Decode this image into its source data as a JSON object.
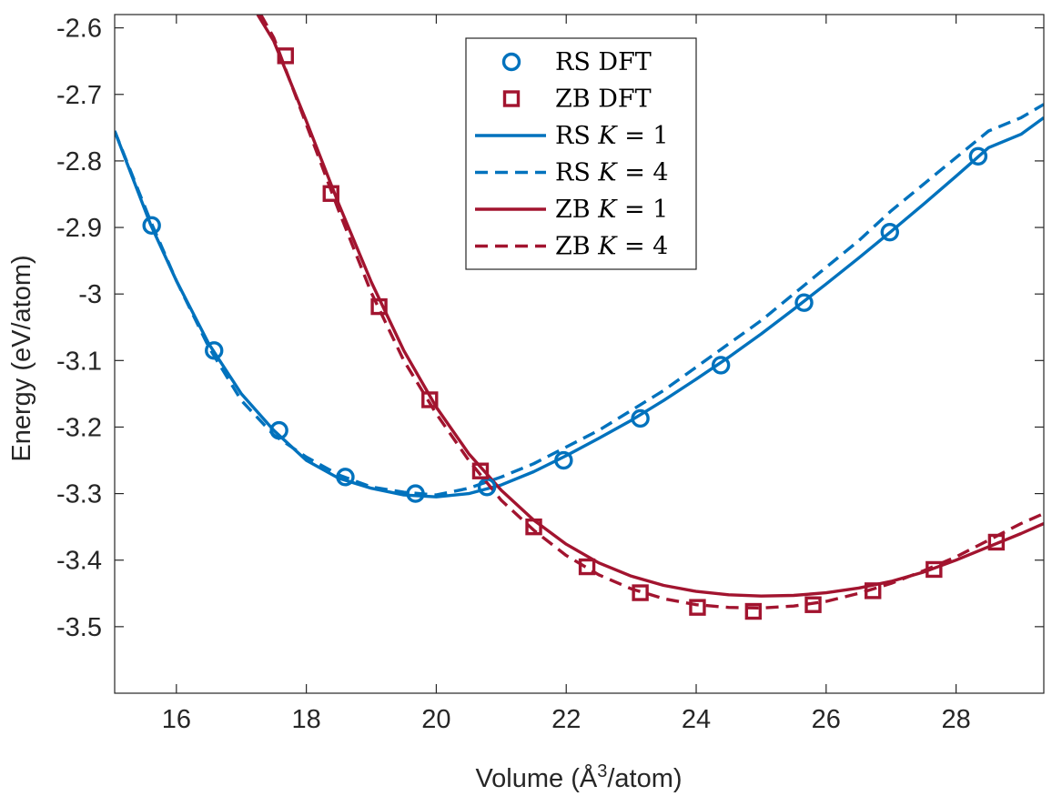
{
  "chart_data": {
    "type": "line",
    "title": "",
    "xlabel": "Volume (Å",
    "xlabel_sup": "3",
    "xlabel_suffix": "/atom)",
    "ylabel": "Energy (eV/atom)",
    "xlim": [
      15.05,
      29.35
    ],
    "ylim": [
      -3.6,
      -2.58
    ],
    "xticks": [
      16,
      18,
      20,
      22,
      24,
      26,
      28
    ],
    "xtick_labels": [
      "16",
      "18",
      "20",
      "22",
      "24",
      "26",
      "28"
    ],
    "yticks": [
      -3.5,
      -3.4,
      -3.3,
      -3.2,
      -3.1,
      -3.0,
      -2.9,
      -2.8,
      -2.7,
      -2.6
    ],
    "ytick_labels": [
      "-3.5",
      "-3.4",
      "-3.3",
      "-3.2",
      "-3.1",
      "-3",
      "-2.9",
      "-2.8",
      "-2.7",
      "-2.6"
    ],
    "grid": false,
    "legend_position": "top-center",
    "colors": {
      "rs": "#0072BD",
      "zb": "#A2142F"
    },
    "series": [
      {
        "name": "RS DFT",
        "label_prefix": "RS",
        "label_suffix": "DFT",
        "kind": "markers",
        "marker": "circle",
        "color": "#0072BD",
        "x": [
          15.62,
          16.58,
          17.58,
          18.6,
          19.68,
          20.78,
          21.96,
          23.14,
          24.38,
          25.66,
          26.98,
          28.34
        ],
        "y": [
          -2.897,
          -3.085,
          -3.205,
          -3.275,
          -3.3,
          -3.29,
          -3.25,
          -3.187,
          -3.107,
          -3.013,
          -2.907,
          -2.793
        ]
      },
      {
        "name": "ZB DFT",
        "label_prefix": "ZB",
        "label_suffix": "DFT",
        "kind": "markers",
        "marker": "square",
        "color": "#A2142F",
        "x": [
          17.68,
          18.38,
          19.12,
          19.9,
          20.68,
          21.5,
          22.32,
          23.14,
          24.02,
          24.88,
          25.8,
          26.72,
          27.66,
          28.62
        ],
        "y": [
          -2.642,
          -2.849,
          -3.019,
          -3.159,
          -3.266,
          -3.35,
          -3.41,
          -3.449,
          -3.471,
          -3.477,
          -3.467,
          -3.446,
          -3.414,
          -3.373
        ]
      },
      {
        "name": "RS K = 1",
        "label_prefix": "RS",
        "label_k": "K",
        "label_eq": "= 1",
        "kind": "line",
        "dash": "solid",
        "color": "#0072BD",
        "x": [
          15.05,
          15.6,
          16.0,
          16.5,
          17.0,
          17.5,
          18.0,
          18.5,
          19.0,
          19.5,
          20.0,
          20.5,
          21.0,
          21.5,
          22.0,
          22.5,
          23.0,
          23.5,
          24.0,
          24.5,
          25.0,
          25.5,
          26.0,
          26.5,
          27.0,
          27.5,
          28.0,
          28.5,
          29.0,
          29.35
        ],
        "y": [
          -2.755,
          -2.895,
          -2.98,
          -3.075,
          -3.15,
          -3.205,
          -3.25,
          -3.277,
          -3.292,
          -3.302,
          -3.305,
          -3.3,
          -3.287,
          -3.267,
          -3.243,
          -3.217,
          -3.19,
          -3.16,
          -3.128,
          -3.095,
          -3.06,
          -3.023,
          -2.985,
          -2.946,
          -2.906,
          -2.865,
          -2.823,
          -2.78,
          -2.76,
          -2.735
        ]
      },
      {
        "name": "RS K = 4",
        "label_prefix": "RS",
        "label_k": "K",
        "label_eq": "= 4",
        "kind": "line",
        "dash": "dashed",
        "color": "#0072BD",
        "x": [
          15.05,
          15.6,
          16.0,
          16.5,
          17.0,
          17.5,
          18.0,
          18.5,
          19.0,
          19.5,
          20.0,
          20.5,
          21.0,
          21.5,
          22.0,
          22.5,
          23.0,
          23.5,
          24.0,
          24.5,
          25.0,
          25.5,
          26.0,
          26.5,
          27.0,
          27.5,
          28.0,
          28.5,
          29.0,
          29.35
        ],
        "y": [
          -2.755,
          -2.89,
          -2.98,
          -3.08,
          -3.16,
          -3.212,
          -3.245,
          -3.272,
          -3.29,
          -3.298,
          -3.302,
          -3.292,
          -3.275,
          -3.255,
          -3.23,
          -3.205,
          -3.175,
          -3.145,
          -3.11,
          -3.075,
          -3.04,
          -3.0,
          -2.96,
          -2.92,
          -2.875,
          -2.835,
          -2.795,
          -2.755,
          -2.735,
          -2.715
        ]
      },
      {
        "name": "ZB K = 1",
        "label_prefix": "ZB",
        "label_k": "K",
        "label_eq": "= 1",
        "kind": "line",
        "dash": "solid",
        "color": "#A2142F",
        "x": [
          17.25,
          17.5,
          18.0,
          18.5,
          19.0,
          19.5,
          20.0,
          20.5,
          21.0,
          21.5,
          22.0,
          22.5,
          23.0,
          23.5,
          24.0,
          24.5,
          25.0,
          25.5,
          26.0,
          26.5,
          27.0,
          27.5,
          28.0,
          28.5,
          29.0,
          29.35
        ],
        "y": [
          -2.58,
          -2.62,
          -2.74,
          -2.865,
          -2.982,
          -3.085,
          -3.17,
          -3.24,
          -3.295,
          -3.34,
          -3.376,
          -3.404,
          -3.424,
          -3.438,
          -3.447,
          -3.452,
          -3.454,
          -3.453,
          -3.449,
          -3.442,
          -3.432,
          -3.418,
          -3.4,
          -3.38,
          -3.36,
          -3.345
        ]
      },
      {
        "name": "ZB K = 4",
        "label_prefix": "ZB",
        "label_k": "K",
        "label_eq": "= 4",
        "kind": "line",
        "dash": "dashed",
        "color": "#A2142F",
        "x": [
          17.3,
          17.5,
          18.0,
          18.5,
          19.0,
          19.5,
          20.0,
          20.5,
          21.0,
          21.5,
          22.0,
          22.5,
          23.0,
          23.5,
          24.0,
          24.5,
          25.0,
          25.5,
          26.0,
          26.5,
          27.0,
          27.5,
          28.0,
          28.5,
          29.0,
          29.35
        ],
        "y": [
          -2.58,
          -2.615,
          -2.745,
          -2.875,
          -2.998,
          -3.1,
          -3.18,
          -3.25,
          -3.31,
          -3.355,
          -3.393,
          -3.422,
          -3.443,
          -3.458,
          -3.467,
          -3.471,
          -3.472,
          -3.469,
          -3.462,
          -3.45,
          -3.435,
          -3.416,
          -3.395,
          -3.37,
          -3.345,
          -3.33
        ]
      }
    ]
  }
}
